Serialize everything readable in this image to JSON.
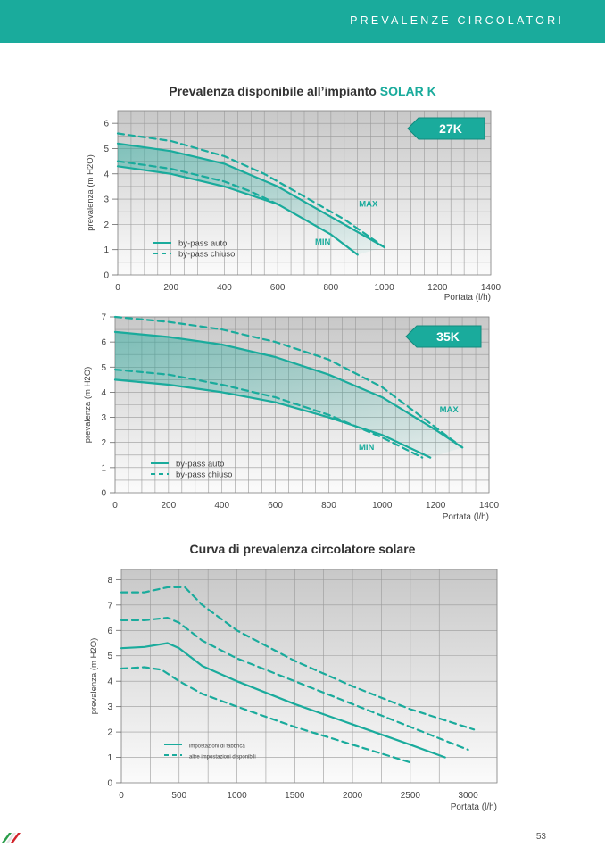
{
  "header": {
    "title": "PREVALENZE CIRCOLATORI"
  },
  "page_number": "53",
  "colors": {
    "teal": "#1aab9c",
    "grid": "#9a9a9a",
    "plot_bg_top": "#c8c8c8",
    "plot_bg_bottom": "#fbfbfb"
  },
  "section1": {
    "title_prefix": "Prevalenza disponibile all’impianto ",
    "title_accent": "SOLAR K"
  },
  "section2": {
    "title": "Curva di prevalenza circolatore solare"
  },
  "chart_data": [
    {
      "type": "line",
      "badge": "27K",
      "ylabel": "prevalenza (m H2O)",
      "xlabel": "Portata (l/h)",
      "xlim": [
        0,
        1400
      ],
      "ylim": [
        0,
        6.5
      ],
      "xticks": [
        0,
        200,
        400,
        600,
        800,
        1000,
        1200,
        1400
      ],
      "yticks": [
        0,
        1,
        2,
        3,
        4,
        5,
        6
      ],
      "grid": true,
      "legend": {
        "position": "bottom-left",
        "entries": [
          {
            "label": "by-pass auto",
            "style": "solid"
          },
          {
            "label": "by-pass chiuso",
            "style": "dashed"
          }
        ]
      },
      "annotations": [
        {
          "text": "MAX",
          "x": 905,
          "y": 2.7
        },
        {
          "text": "MIN",
          "x": 740,
          "y": 1.2
        }
      ],
      "series": [
        {
          "name": "MAX by-pass auto",
          "style": "solid",
          "x": [
            0,
            200,
            400,
            600,
            800,
            1000
          ],
          "y": [
            5.2,
            4.9,
            4.4,
            3.5,
            2.3,
            1.1
          ]
        },
        {
          "name": "MAX by-pass chiuso",
          "style": "dashed",
          "x": [
            0,
            200,
            400,
            550,
            700,
            850,
            1000
          ],
          "y": [
            5.6,
            5.3,
            4.7,
            4.0,
            3.1,
            2.2,
            1.1
          ]
        },
        {
          "name": "MIN by-pass auto",
          "style": "solid",
          "x": [
            0,
            200,
            400,
            600,
            800,
            900
          ],
          "y": [
            4.3,
            4.0,
            3.5,
            2.8,
            1.6,
            0.8
          ]
        },
        {
          "name": "MIN by-pass chiuso",
          "style": "dashed",
          "x": [
            0,
            200,
            400,
            500,
            600
          ],
          "y": [
            4.5,
            4.2,
            3.7,
            3.3,
            2.8
          ]
        }
      ]
    },
    {
      "type": "line",
      "badge": "35K",
      "ylabel": "prevalenza (m H2O)",
      "xlabel": "Portata (l/h)",
      "xlim": [
        0,
        1400
      ],
      "ylim": [
        0,
        7
      ],
      "xticks": [
        0,
        200,
        400,
        600,
        800,
        1000,
        1200,
        1400
      ],
      "yticks": [
        0,
        1,
        2,
        3,
        4,
        5,
        6,
        7
      ],
      "grid": true,
      "legend": {
        "position": "bottom-left",
        "entries": [
          {
            "label": "by-pass auto",
            "style": "solid"
          },
          {
            "label": "by-pass chiuso",
            "style": "dashed"
          }
        ]
      },
      "annotations": [
        {
          "text": "MAX",
          "x": 1215,
          "y": 3.2
        },
        {
          "text": "MIN",
          "x": 912,
          "y": 1.7
        }
      ],
      "series": [
        {
          "name": "MAX by-pass auto",
          "style": "solid",
          "x": [
            0,
            200,
            400,
            600,
            800,
            1000,
            1200,
            1300
          ],
          "y": [
            6.4,
            6.2,
            5.9,
            5.4,
            4.7,
            3.8,
            2.5,
            1.8
          ]
        },
        {
          "name": "MAX by-pass chiuso",
          "style": "dashed",
          "x": [
            0,
            200,
            400,
            600,
            800,
            1000,
            1200,
            1300
          ],
          "y": [
            7.0,
            6.8,
            6.5,
            6.0,
            5.3,
            4.2,
            2.6,
            1.8
          ]
        },
        {
          "name": "MIN by-pass auto",
          "style": "solid",
          "x": [
            0,
            200,
            400,
            600,
            800,
            1000,
            1180
          ],
          "y": [
            4.5,
            4.3,
            4.0,
            3.6,
            3.0,
            2.3,
            1.4
          ]
        },
        {
          "name": "MIN by-pass chiuso",
          "style": "dashed",
          "x": [
            0,
            200,
            400,
            600,
            800,
            1000,
            1150
          ],
          "y": [
            4.9,
            4.7,
            4.3,
            3.8,
            3.1,
            2.2,
            1.4
          ]
        }
      ]
    },
    {
      "type": "line",
      "ylabel": "prevalenza (m H2O)",
      "xlabel": "Portata (l/h)",
      "xlim": [
        0,
        3250
      ],
      "ylim": [
        0,
        8.4
      ],
      "xticks": [
        0,
        500,
        1000,
        1500,
        2000,
        2500,
        3000
      ],
      "yticks": [
        0,
        1,
        2,
        3,
        4,
        5,
        6,
        7,
        8
      ],
      "grid": true,
      "legend": {
        "position": "bottom-left",
        "entries": [
          {
            "label": "impostazioni di fabbrica",
            "style": "solid"
          },
          {
            "label": "altre impostazioni disponibili",
            "style": "dashed"
          }
        ]
      },
      "series": [
        {
          "name": "impostazioni di fabbrica",
          "style": "solid",
          "x": [
            0,
            200,
            400,
            500,
            700,
            1000,
            1500,
            2000,
            2500,
            2800
          ],
          "y": [
            5.3,
            5.35,
            5.5,
            5.3,
            4.6,
            4.0,
            3.1,
            2.3,
            1.5,
            1.0
          ]
        },
        {
          "name": "altre impostazioni 1",
          "style": "dashed",
          "x": [
            0,
            200,
            350,
            500,
            700,
            1000,
            1500,
            2000,
            2500
          ],
          "y": [
            4.5,
            4.55,
            4.45,
            4.0,
            3.5,
            3.0,
            2.2,
            1.5,
            0.8
          ]
        },
        {
          "name": "altre impostazioni 2",
          "style": "dashed",
          "x": [
            0,
            200,
            400,
            500,
            700,
            1000,
            1500,
            2000,
            2500,
            3000
          ],
          "y": [
            6.4,
            6.4,
            6.5,
            6.3,
            5.6,
            4.9,
            4.0,
            3.1,
            2.2,
            1.3
          ]
        },
        {
          "name": "altre impostazioni 3",
          "style": "dashed",
          "x": [
            0,
            200,
            400,
            550,
            700,
            1000,
            1500,
            2000,
            2500,
            3050
          ],
          "y": [
            7.5,
            7.5,
            7.7,
            7.7,
            7.0,
            6.0,
            4.8,
            3.8,
            2.9,
            2.1
          ]
        }
      ]
    }
  ]
}
